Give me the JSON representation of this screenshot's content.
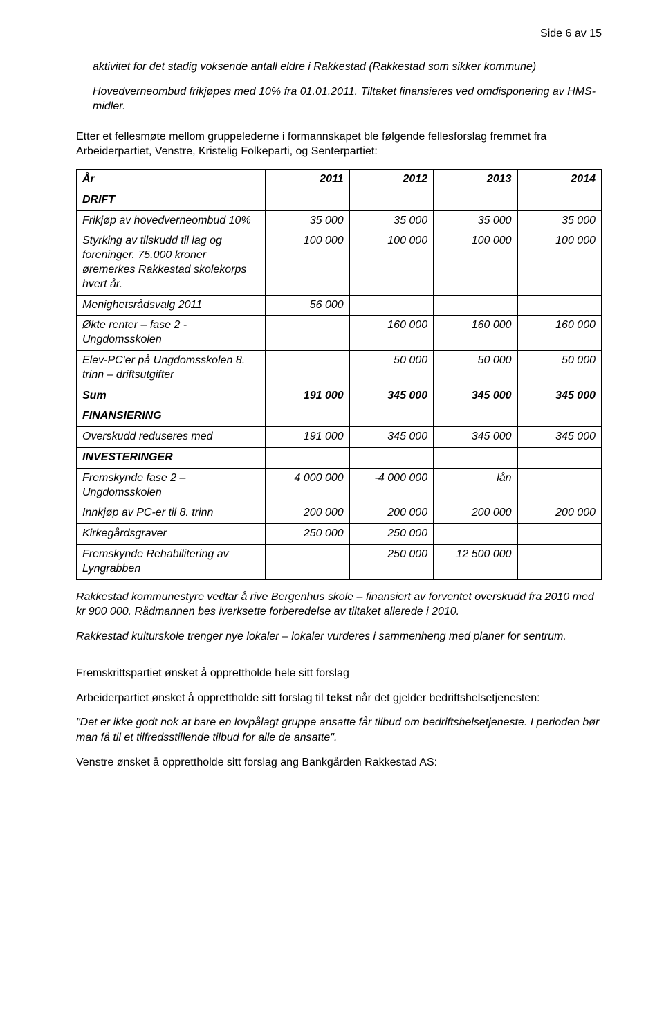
{
  "page_header": "Side 6 av 15",
  "intro": {
    "p1": "aktivitet for det stadig voksende antall eldre i Rakkestad (Rakkestad som sikker kommune)",
    "p2": "Hovedverneombud frikjøpes med 10% fra 01.01.2011. Tiltaket finansieres ved omdisponering av HMS-midler."
  },
  "pre_table": "Etter et fellesmøte mellom gruppelederne i formannskapet ble følgende fellesforslag fremmet fra Arbeiderpartiet, Venstre, Kristelig Folkeparti, og Senterpartiet:",
  "table": {
    "header": {
      "c0": "År",
      "c1": "2011",
      "c2": "2012",
      "c3": "2013",
      "c4": "2014"
    },
    "rows": [
      {
        "type": "section",
        "c0": "DRIFT"
      },
      {
        "type": "data",
        "c0": "Frikjøp av hovedverneombud 10%",
        "c1": "35 000",
        "c2": "35 000",
        "c3": "35 000",
        "c4": "35 000"
      },
      {
        "type": "data",
        "c0": "Styrking av tilskudd til lag og foreninger.  75.000 kroner øremerkes Rakkestad skolekorps hvert år.",
        "c1": "100 000",
        "c2": "100 000",
        "c3": "100 000",
        "c4": "100 000"
      },
      {
        "type": "data",
        "c0": "Menighetsrådsvalg 2011",
        "c1": "56 000",
        "c2": "",
        "c3": "",
        "c4": ""
      },
      {
        "type": "data",
        "c0": "Økte renter – fase 2 - Ungdomsskolen",
        "c1": "",
        "c2": "160 000",
        "c3": "160 000",
        "c4": "160 000"
      },
      {
        "type": "data",
        "c0": "Elev-PC'er på Ungdomsskolen 8. trinn – driftsutgifter",
        "c1": "",
        "c2": "50 000",
        "c3": "50 000",
        "c4": "50 000"
      },
      {
        "type": "sum",
        "c0": "Sum",
        "c1": "191 000",
        "c2": "345  000",
        "c3": "345 000",
        "c4": "345 000"
      },
      {
        "type": "section",
        "c0": "FINANSIERING"
      },
      {
        "type": "data",
        "c0": "Overskudd reduseres med",
        "c1": "191 000",
        "c2": "345 000",
        "c3": "345 000",
        "c4": "345 000"
      },
      {
        "type": "section",
        "c0": "INVESTERINGER"
      },
      {
        "type": "data",
        "c0": "Fremskynde  fase 2 – Ungdomsskolen",
        "c1": "4 000 000",
        "c2": "-4 000 000",
        "c3": "lån",
        "c4": ""
      },
      {
        "type": "data",
        "c0": "Innkjøp av PC-er til 8. trinn",
        "c1": "200 000",
        "c2": "200 000",
        "c3": "200 000",
        "c4": "200 000"
      },
      {
        "type": "data",
        "c0": "Kirkegårdsgraver",
        "c1": "250 000",
        "c2": "250 000",
        "c3": "",
        "c4": ""
      },
      {
        "type": "data",
        "c0": "Fremskynde Rehabilitering av Lyngrabben",
        "c1": "",
        "c2": "250 000",
        "c3": "12 500 000",
        "c4": ""
      }
    ]
  },
  "post_table": {
    "p1": "Rakkestad kommunestyre vedtar å rive Bergenhus skole – finansiert av forventet overskudd fra 2010 med kr 900 000.  Rådmannen bes iverksette forberedelse av tiltaket allerede i 2010.",
    "p2": "Rakkestad kulturskole trenger nye lokaler – lokaler vurderes i sammenheng med planer for sentrum."
  },
  "bottom": {
    "p1": "Fremskrittspartiet ønsket å opprettholde hele sitt forslag",
    "p2a": "Arbeiderpartiet ønsket å opprettholde sitt forslag til ",
    "p2b": "tekst",
    "p2c": " når det gjelder bedriftshelsetjenesten:",
    "p3": "\"Det er ikke godt nok at bare en lovpålagt gruppe ansatte får tilbud om bedriftshelsetjeneste. I perioden bør man få til et tilfredsstillende tilbud for alle de ansatte\".",
    "p4": "Venstre ønsket å opprettholde sitt forslag ang Bankgården Rakkestad AS:"
  }
}
